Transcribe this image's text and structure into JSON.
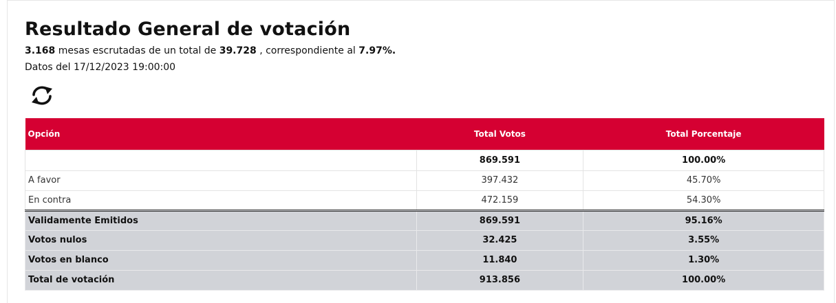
{
  "header": {
    "title": "Resultado General de votación",
    "summary": {
      "mesas_escrutadas": "3.168",
      "text_middle": "mesas escrutadas de un total de",
      "mesas_total": "39.728",
      "text_after": ", correspondiente al",
      "porcentaje": "7.97%."
    },
    "date_prefix": "Datos del",
    "date_value": "17/12/2023 19:00:00",
    "refresh_icon": "refresh-icon"
  },
  "table": {
    "columns": [
      "Opción",
      "Total Votos",
      "Total Porcentaje"
    ],
    "total_row": {
      "option": "",
      "votes": "869.591",
      "percent": "100.00%"
    },
    "option_rows": [
      {
        "option": "A favor",
        "votes": "397.432",
        "percent": "45.70%"
      },
      {
        "option": "En contra",
        "votes": "472.159",
        "percent": "54.30%"
      }
    ],
    "summary_rows": [
      {
        "option": "Validamente Emitidos",
        "votes": "869.591",
        "percent": "95.16%"
      },
      {
        "option": "Votos nulos",
        "votes": "32.425",
        "percent": "3.55%"
      },
      {
        "option": "Votos en blanco",
        "votes": "11.840",
        "percent": "1.30%"
      },
      {
        "option": "Total de votación",
        "votes": "913.856",
        "percent": "100.00%"
      }
    ]
  },
  "colors": {
    "header_bg": "#d50032",
    "summary_bg": "#d1d3d8"
  }
}
